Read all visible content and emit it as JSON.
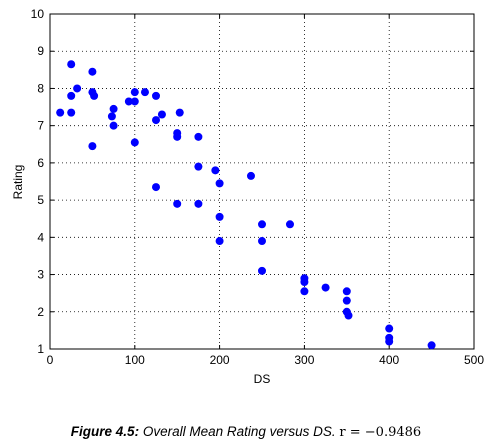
{
  "chart_data": {
    "type": "scatter",
    "xlabel": "DS",
    "ylabel": "Rating",
    "xlim": [
      0,
      500
    ],
    "ylim": [
      1,
      10
    ],
    "xticks": [
      0,
      100,
      200,
      300,
      400,
      500
    ],
    "yticks": [
      1,
      2,
      3,
      4,
      5,
      6,
      7,
      8,
      9,
      10
    ],
    "grid": true,
    "marker_color": "#0000ff",
    "points": [
      {
        "x": 12,
        "y": 7.35
      },
      {
        "x": 25,
        "y": 8.65
      },
      {
        "x": 25,
        "y": 7.8
      },
      {
        "x": 25,
        "y": 7.35
      },
      {
        "x": 32,
        "y": 8.0
      },
      {
        "x": 50,
        "y": 8.45
      },
      {
        "x": 50,
        "y": 7.9
      },
      {
        "x": 52,
        "y": 7.8
      },
      {
        "x": 50,
        "y": 6.45
      },
      {
        "x": 73,
        "y": 7.25
      },
      {
        "x": 75,
        "y": 7.45
      },
      {
        "x": 75,
        "y": 7.0
      },
      {
        "x": 93,
        "y": 7.65
      },
      {
        "x": 100,
        "y": 7.65
      },
      {
        "x": 100,
        "y": 7.9
      },
      {
        "x": 100,
        "y": 6.55
      },
      {
        "x": 112,
        "y": 7.9
      },
      {
        "x": 125,
        "y": 7.8
      },
      {
        "x": 125,
        "y": 7.15
      },
      {
        "x": 132,
        "y": 7.3
      },
      {
        "x": 125,
        "y": 5.35
      },
      {
        "x": 150,
        "y": 6.8
      },
      {
        "x": 150,
        "y": 6.7
      },
      {
        "x": 153,
        "y": 7.35
      },
      {
        "x": 150,
        "y": 4.9
      },
      {
        "x": 175,
        "y": 6.7
      },
      {
        "x": 175,
        "y": 5.9
      },
      {
        "x": 175,
        "y": 4.9
      },
      {
        "x": 195,
        "y": 5.8
      },
      {
        "x": 200,
        "y": 5.45
      },
      {
        "x": 200,
        "y": 4.55
      },
      {
        "x": 200,
        "y": 3.9
      },
      {
        "x": 237,
        "y": 5.65
      },
      {
        "x": 250,
        "y": 4.35
      },
      {
        "x": 250,
        "y": 3.9
      },
      {
        "x": 250,
        "y": 3.1
      },
      {
        "x": 283,
        "y": 4.35
      },
      {
        "x": 300,
        "y": 2.9
      },
      {
        "x": 300,
        "y": 2.8
      },
      {
        "x": 300,
        "y": 2.55
      },
      {
        "x": 325,
        "y": 2.65
      },
      {
        "x": 350,
        "y": 2.55
      },
      {
        "x": 350,
        "y": 2.3
      },
      {
        "x": 350,
        "y": 2.0
      },
      {
        "x": 352,
        "y": 1.9
      },
      {
        "x": 400,
        "y": 1.55
      },
      {
        "x": 400,
        "y": 1.3
      },
      {
        "x": 400,
        "y": 1.2
      },
      {
        "x": 450,
        "y": 1.1
      }
    ]
  },
  "caption": {
    "label": "Figure 4.5:",
    "text": "Overall Mean Rating versus DS.",
    "r_value": "r = −0.9486"
  }
}
